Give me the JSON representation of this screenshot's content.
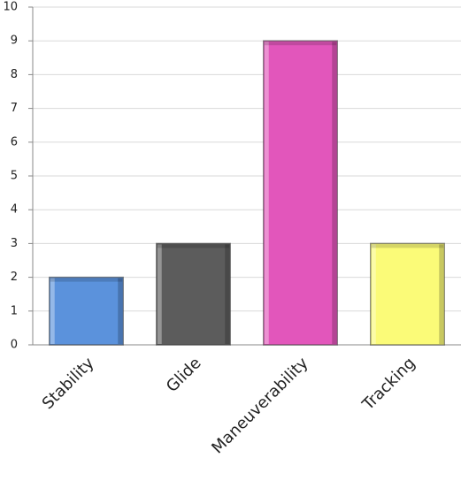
{
  "chart_data": {
    "type": "bar",
    "categories": [
      "Stability",
      "Glide",
      "Maneuverability",
      "Tracking"
    ],
    "values": [
      2,
      3,
      9,
      3
    ],
    "colors": [
      "#5b92dc",
      "#5c5c5c",
      "#e256bb",
      "#fbfb78"
    ],
    "ylim": [
      0,
      10
    ],
    "yticks": [
      0,
      1,
      2,
      3,
      4,
      5,
      6,
      7,
      8,
      9,
      10
    ],
    "grid": true
  }
}
